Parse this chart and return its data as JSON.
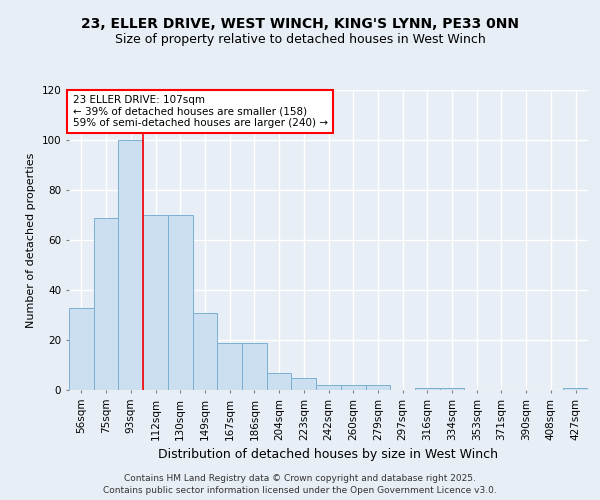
{
  "title1": "23, ELLER DRIVE, WEST WINCH, KING'S LYNN, PE33 0NN",
  "title2": "Size of property relative to detached houses in West Winch",
  "xlabel": "Distribution of detached houses by size in West Winch",
  "ylabel": "Number of detached properties",
  "bin_labels": [
    "56sqm",
    "75sqm",
    "93sqm",
    "112sqm",
    "130sqm",
    "149sqm",
    "167sqm",
    "186sqm",
    "204sqm",
    "223sqm",
    "242sqm",
    "260sqm",
    "279sqm",
    "297sqm",
    "316sqm",
    "334sqm",
    "353sqm",
    "371sqm",
    "390sqm",
    "408sqm",
    "427sqm"
  ],
  "bar_heights": [
    33,
    69,
    100,
    70,
    70,
    31,
    19,
    19,
    7,
    5,
    2,
    2,
    2,
    0,
    1,
    1,
    0,
    0,
    0,
    0,
    1
  ],
  "bar_color": "#ccdff0",
  "bar_edge_color": "#7ab0d4",
  "red_line_index": 3,
  "annotation_text": "23 ELLER DRIVE: 107sqm\n← 39% of detached houses are smaller (158)\n59% of semi-detached houses are larger (240) →",
  "annotation_box_color": "white",
  "annotation_box_edge_color": "red",
  "red_line_color": "red",
  "ylim": [
    0,
    120
  ],
  "yticks": [
    0,
    20,
    40,
    60,
    80,
    100,
    120
  ],
  "background_color": "#e8eef5",
  "plot_bg_color": "#e8eef5",
  "grid_color": "white",
  "footer_line1": "Contains HM Land Registry data © Crown copyright and database right 2025.",
  "footer_line2": "Contains public sector information licensed under the Open Government Licence v3.0.",
  "title1_fontsize": 10,
  "title2_fontsize": 9,
  "ylabel_fontsize": 8,
  "xlabel_fontsize": 9,
  "tick_fontsize": 7.5,
  "footer_fontsize": 6.5,
  "annot_fontsize": 7.5
}
